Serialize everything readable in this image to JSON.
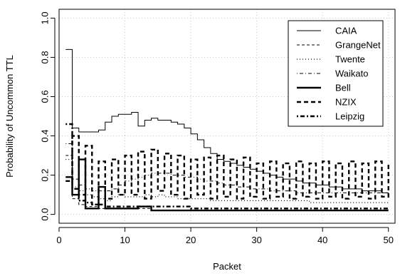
{
  "chart_data": {
    "type": "line",
    "title": "",
    "xlabel": "Packet",
    "ylabel": "Probability of Uncommon TTL",
    "xlim": [
      0,
      51
    ],
    "ylim": [
      0,
      1.0
    ],
    "xticks": [
      0,
      10,
      20,
      30,
      40,
      50
    ],
    "xtick_labels": [
      "0",
      "10",
      "20",
      "30",
      "40",
      "50"
    ],
    "yticks": [
      0.0,
      0.2,
      0.4,
      0.6,
      0.8,
      1.0
    ],
    "ytick_labels": [
      "0.0",
      "0.2",
      "0.4",
      "0.6",
      "0.8",
      "1.0"
    ],
    "grid": true,
    "legend_position": "top-right",
    "series": [
      {
        "name": "CAIA",
        "style": "solid-thin",
        "x": [
          1,
          2,
          3,
          4,
          5,
          6,
          7,
          8,
          9,
          10,
          11,
          12,
          13,
          14,
          15,
          16,
          17,
          18,
          19,
          20,
          21,
          22,
          23,
          24,
          25,
          26,
          27,
          28,
          29,
          30,
          31,
          32,
          33,
          34,
          35,
          36,
          37,
          38,
          39,
          40,
          41,
          42,
          43,
          44,
          45,
          46,
          47,
          48,
          49,
          50
        ],
        "y": [
          0.84,
          0.44,
          0.42,
          0.42,
          0.42,
          0.43,
          0.47,
          0.5,
          0.51,
          0.51,
          0.52,
          0.45,
          0.48,
          0.49,
          0.48,
          0.48,
          0.47,
          0.46,
          0.44,
          0.41,
          0.38,
          0.34,
          0.31,
          0.28,
          0.27,
          0.26,
          0.25,
          0.24,
          0.23,
          0.22,
          0.21,
          0.2,
          0.19,
          0.18,
          0.18,
          0.17,
          0.16,
          0.16,
          0.15,
          0.15,
          0.14,
          0.14,
          0.13,
          0.13,
          0.13,
          0.12,
          0.12,
          0.12,
          0.11,
          0.11
        ]
      },
      {
        "name": "GrangeNet",
        "style": "dashed-thin",
        "x": [
          1,
          2,
          3,
          4,
          5,
          6,
          7,
          8,
          9,
          10,
          11,
          12,
          13,
          14,
          15,
          16,
          17,
          18,
          19,
          20,
          21,
          22,
          23,
          24,
          25,
          26,
          27,
          28,
          29,
          30,
          31,
          32,
          33,
          34,
          35,
          36,
          37,
          38,
          39,
          40,
          41,
          42,
          43,
          44,
          45,
          46,
          47,
          48,
          49,
          50
        ],
        "y": [
          0.3,
          0.08,
          0.05,
          0.04,
          0.04,
          0.03,
          0.03,
          0.03,
          0.03,
          0.03,
          0.03,
          0.03,
          0.03,
          0.02,
          0.02,
          0.02,
          0.02,
          0.02,
          0.02,
          0.02,
          0.02,
          0.02,
          0.02,
          0.02,
          0.02,
          0.02,
          0.02,
          0.02,
          0.02,
          0.02,
          0.02,
          0.02,
          0.02,
          0.02,
          0.02,
          0.02,
          0.02,
          0.02,
          0.02,
          0.02,
          0.02,
          0.02,
          0.02,
          0.02,
          0.02,
          0.02,
          0.02,
          0.02,
          0.02,
          0.02
        ]
      },
      {
        "name": "Twente",
        "style": "dotted-thin",
        "x": [
          1,
          2,
          3,
          4,
          5,
          6,
          7,
          8,
          9,
          10,
          11,
          12,
          13,
          14,
          15,
          16,
          17,
          18,
          19,
          20,
          21,
          22,
          23,
          24,
          25,
          26,
          27,
          28,
          29,
          30,
          31,
          32,
          33,
          34,
          35,
          36,
          37,
          38,
          39,
          40,
          41,
          42,
          43,
          44,
          45,
          46,
          47,
          48,
          49,
          50
        ],
        "y": [
          0.28,
          0.14,
          0.12,
          0.1,
          0.09,
          0.08,
          0.07,
          0.09,
          0.1,
          0.09,
          0.09,
          0.09,
          0.1,
          0.09,
          0.1,
          0.09,
          0.09,
          0.08,
          0.08,
          0.08,
          0.08,
          0.08,
          0.07,
          0.07,
          0.07,
          0.07,
          0.07,
          0.07,
          0.07,
          0.07,
          0.07,
          0.07,
          0.07,
          0.07,
          0.07,
          0.07,
          0.07,
          0.06,
          0.06,
          0.06,
          0.06,
          0.06,
          0.06,
          0.06,
          0.06,
          0.06,
          0.06,
          0.06,
          0.06,
          0.06
        ]
      },
      {
        "name": "Waikato",
        "style": "dotdash-thin",
        "x": [
          1,
          2,
          3,
          4,
          5,
          6,
          7,
          8,
          9,
          10,
          11,
          12,
          13,
          14,
          15,
          16,
          17,
          18,
          19,
          20,
          21,
          22,
          23,
          24,
          25,
          26,
          27,
          28,
          29,
          30,
          31,
          32,
          33,
          34,
          35,
          36,
          37,
          38,
          39,
          40,
          41,
          42,
          43,
          44,
          45,
          46,
          47,
          48,
          49,
          50
        ],
        "y": [
          0.36,
          0.18,
          0.15,
          0.13,
          0.12,
          0.12,
          0.12,
          0.13,
          0.15,
          0.17,
          0.18,
          0.19,
          0.2,
          0.21,
          0.21,
          0.21,
          0.2,
          0.2,
          0.19,
          0.19,
          0.18,
          0.17,
          0.17,
          0.16,
          0.15,
          0.15,
          0.14,
          0.14,
          0.13,
          0.13,
          0.13,
          0.12,
          0.12,
          0.12,
          0.12,
          0.11,
          0.11,
          0.11,
          0.11,
          0.11,
          0.11,
          0.11,
          0.11,
          0.11,
          0.11,
          0.11,
          0.11,
          0.11,
          0.11,
          0.11
        ]
      },
      {
        "name": "Bell",
        "style": "solid-thick",
        "x": [
          1,
          2,
          3,
          4,
          5,
          6,
          7,
          8,
          9,
          10,
          11,
          12,
          13,
          14,
          15,
          16,
          17,
          18,
          19,
          20,
          21,
          22,
          23,
          24,
          25,
          26,
          27,
          28,
          29,
          30,
          31,
          32,
          33,
          34,
          35,
          36,
          37,
          38,
          39,
          40,
          41,
          42,
          43,
          44,
          45,
          46,
          47,
          48,
          49,
          50
        ],
        "y": [
          0.19,
          0.1,
          0.28,
          0.03,
          0.03,
          0.14,
          0.03,
          0.03,
          0.03,
          0.03,
          0.03,
          0.04,
          0.04,
          0.02,
          0.02,
          0.02,
          0.02,
          0.02,
          0.02,
          0.02,
          0.02,
          0.02,
          0.02,
          0.02,
          0.02,
          0.02,
          0.02,
          0.02,
          0.02,
          0.02,
          0.02,
          0.02,
          0.02,
          0.02,
          0.02,
          0.02,
          0.02,
          0.02,
          0.02,
          0.02,
          0.02,
          0.02,
          0.02,
          0.02,
          0.02,
          0.02,
          0.02,
          0.02,
          0.02,
          0.02
        ]
      },
      {
        "name": "NZIX",
        "style": "dashed-thick",
        "x": [
          1,
          2,
          3,
          4,
          5,
          6,
          7,
          8,
          9,
          10,
          11,
          12,
          13,
          14,
          15,
          16,
          17,
          18,
          19,
          20,
          21,
          22,
          23,
          24,
          25,
          26,
          27,
          28,
          29,
          30,
          31,
          32,
          33,
          34,
          35,
          36,
          37,
          38,
          39,
          40,
          41,
          42,
          43,
          44,
          45,
          46,
          47,
          48,
          49,
          50
        ],
        "y": [
          0.17,
          0.4,
          0.1,
          0.35,
          0.05,
          0.27,
          0.08,
          0.28,
          0.1,
          0.3,
          0.1,
          0.32,
          0.08,
          0.33,
          0.12,
          0.31,
          0.1,
          0.3,
          0.08,
          0.28,
          0.1,
          0.29,
          0.08,
          0.3,
          0.09,
          0.28,
          0.08,
          0.29,
          0.09,
          0.26,
          0.08,
          0.27,
          0.09,
          0.26,
          0.08,
          0.27,
          0.09,
          0.26,
          0.08,
          0.27,
          0.09,
          0.26,
          0.08,
          0.27,
          0.09,
          0.26,
          0.08,
          0.27,
          0.09,
          0.26
        ]
      },
      {
        "name": "Leipzig",
        "style": "dotdash-thick",
        "x": [
          1,
          2,
          3,
          4,
          5,
          6,
          7,
          8,
          9,
          10,
          11,
          12,
          13,
          14,
          15,
          16,
          17,
          18,
          19,
          20,
          21,
          22,
          23,
          24,
          25,
          26,
          27,
          28,
          29,
          30,
          31,
          32,
          33,
          34,
          35,
          36,
          37,
          38,
          39,
          40,
          41,
          42,
          43,
          44,
          45,
          46,
          47,
          48,
          49,
          50
        ],
        "y": [
          0.46,
          0.13,
          0.07,
          0.06,
          0.05,
          0.05,
          0.04,
          0.04,
          0.04,
          0.04,
          0.04,
          0.04,
          0.04,
          0.04,
          0.04,
          0.04,
          0.04,
          0.04,
          0.04,
          0.03,
          0.03,
          0.03,
          0.03,
          0.03,
          0.03,
          0.03,
          0.03,
          0.03,
          0.03,
          0.03,
          0.03,
          0.03,
          0.03,
          0.03,
          0.03,
          0.03,
          0.03,
          0.03,
          0.03,
          0.03,
          0.03,
          0.03,
          0.03,
          0.03,
          0.03,
          0.03,
          0.03,
          0.03,
          0.03,
          0.03
        ]
      }
    ]
  },
  "styles": {
    "solid-thin": {
      "width": 1.0,
      "dash": ""
    },
    "dashed-thin": {
      "width": 1.0,
      "dash": "4 3"
    },
    "dotted-thin": {
      "width": 1.2,
      "dash": "1 3"
    },
    "dotdash-thin": {
      "width": 1.0,
      "dash": "1 3 5 3"
    },
    "solid-thick": {
      "width": 2.4,
      "dash": ""
    },
    "dashed-thick": {
      "width": 2.4,
      "dash": "6 4"
    },
    "dotdash-thick": {
      "width": 2.4,
      "dash": "2 3 6 3"
    }
  },
  "colors": {
    "line": "#000000",
    "grid": "#c8c8c8",
    "background": "#ffffff"
  }
}
